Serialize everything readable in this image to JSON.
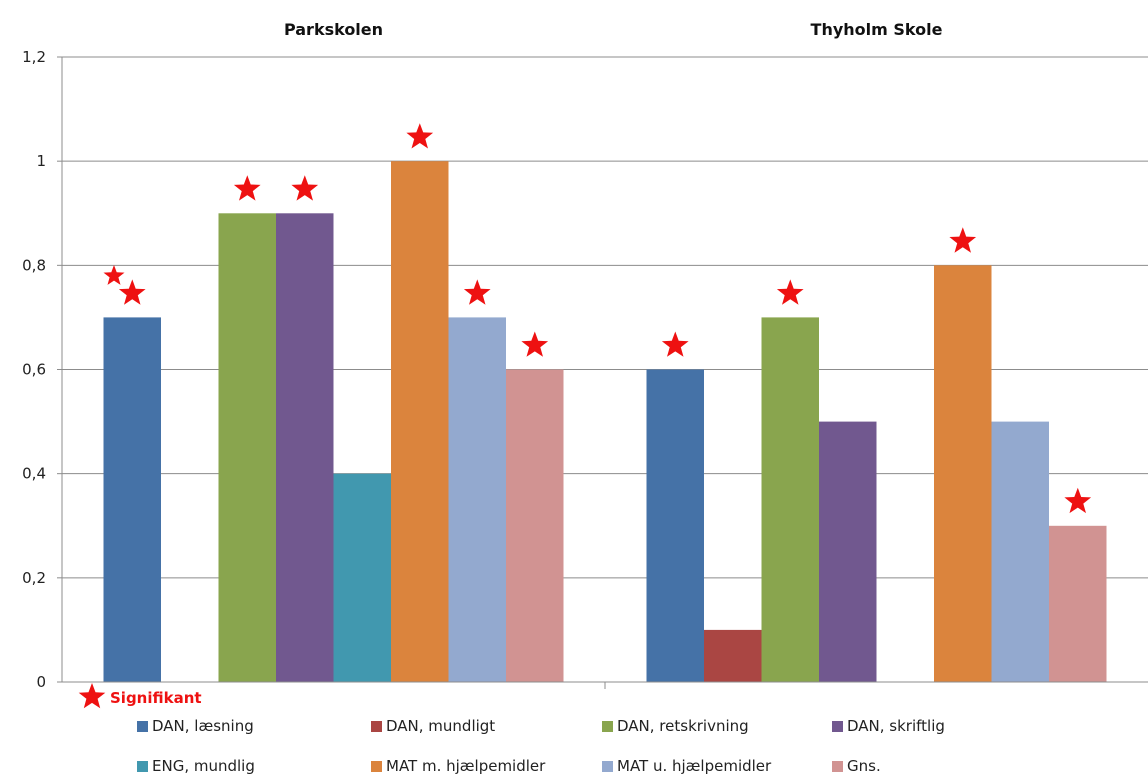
{
  "chart_data": {
    "type": "bar",
    "categories": [
      "Parkskolen",
      "Thyholm Skole"
    ],
    "ylim": [
      0,
      1.2
    ],
    "yticks": [
      "0",
      "0,2",
      "0,4",
      "0,6",
      "0,8",
      "1",
      "1,2"
    ],
    "grid": true,
    "series": [
      {
        "name": "DAN, læsning",
        "color": "#4572a7",
        "values": [
          0.7,
          0.6
        ],
        "significant": [
          true,
          true
        ]
      },
      {
        "name": "DAN, mundligt",
        "color": "#aa4643",
        "values": [
          0,
          0.1
        ],
        "significant": [
          false,
          false
        ]
      },
      {
        "name": "DAN, retskrivning",
        "color": "#89a54e",
        "values": [
          0.9,
          0.7
        ],
        "significant": [
          true,
          true
        ]
      },
      {
        "name": "DAN, skriftlig",
        "color": "#71588f",
        "values": [
          0.9,
          0.5
        ],
        "significant": [
          true,
          false
        ]
      },
      {
        "name": "ENG, mundlig",
        "color": "#4198af",
        "values": [
          0.4,
          0
        ],
        "significant": [
          false,
          false
        ]
      },
      {
        "name": "MAT m. hjælpemidler",
        "color": "#db843d",
        "values": [
          1.0,
          0.8
        ],
        "significant": [
          true,
          true
        ]
      },
      {
        "name": "MAT u. hjælpemidler",
        "color": "#93a9cf",
        "values": [
          0.7,
          0.5
        ],
        "significant": [
          true,
          false
        ]
      },
      {
        "name": "Gns.",
        "color": "#d19392",
        "values": [
          0.6,
          0.3
        ],
        "significant": [
          true,
          true
        ]
      }
    ],
    "marker_legend": {
      "label": "Signifikant",
      "color": "#ee1111",
      "icon": "star-icon"
    },
    "legend_position": "bottom"
  }
}
